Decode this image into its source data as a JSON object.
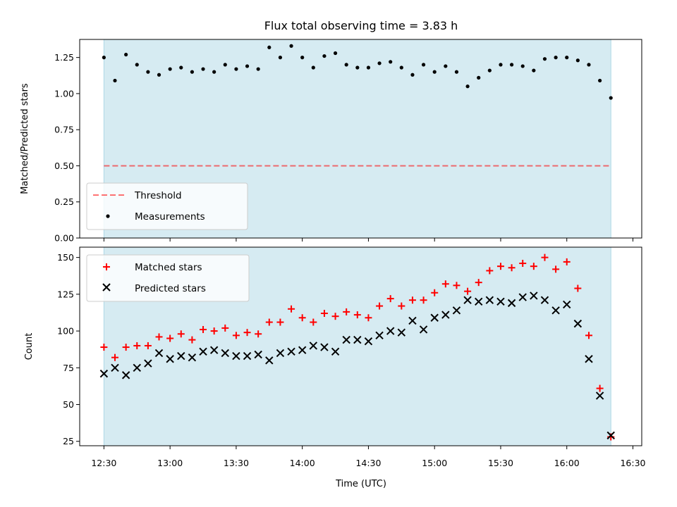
{
  "title": "Flux total observing time = 3.83 h",
  "colors": {
    "shade": "#add8e6",
    "threshold": "#ff0000",
    "matched": "#ff0000",
    "predicted": "#000000",
    "measurement": "#000000"
  },
  "chart_data": [
    {
      "type": "scatter",
      "name": "ratio",
      "ylabel": "Matched/Predicted stars",
      "xlabel": "",
      "xlim": [
        "12:19",
        "16:34"
      ],
      "ylim": [
        0,
        1.375
      ],
      "yticks": [
        0.0,
        0.25,
        0.5,
        0.75,
        1.0,
        1.25
      ],
      "ytick_labels": [
        "0.00",
        "0.25",
        "0.50",
        "0.75",
        "1.00",
        "1.25"
      ],
      "shaded_span": [
        "12:30",
        "16:20"
      ],
      "threshold": 0.5,
      "legend": {
        "position": "lower-left",
        "entries": [
          "Threshold",
          "Measurements"
        ]
      },
      "x": [
        "12:30",
        "12:35",
        "12:40",
        "12:45",
        "12:50",
        "12:55",
        "13:00",
        "13:05",
        "13:10",
        "13:15",
        "13:20",
        "13:25",
        "13:30",
        "13:35",
        "13:40",
        "13:45",
        "13:50",
        "13:55",
        "14:00",
        "14:05",
        "14:10",
        "14:15",
        "14:20",
        "14:25",
        "14:30",
        "14:35",
        "14:40",
        "14:45",
        "14:50",
        "14:55",
        "15:00",
        "15:05",
        "15:10",
        "15:15",
        "15:20",
        "15:25",
        "15:30",
        "15:35",
        "15:40",
        "15:45",
        "15:50",
        "15:55",
        "16:00",
        "16:05",
        "16:10",
        "16:15",
        "16:20"
      ],
      "values": [
        1.25,
        1.09,
        1.27,
        1.2,
        1.15,
        1.13,
        1.17,
        1.18,
        1.15,
        1.17,
        1.15,
        1.2,
        1.17,
        1.19,
        1.17,
        1.32,
        1.25,
        1.33,
        1.25,
        1.18,
        1.26,
        1.28,
        1.2,
        1.18,
        1.18,
        1.21,
        1.22,
        1.18,
        1.13,
        1.2,
        1.15,
        1.19,
        1.15,
        1.05,
        1.11,
        1.16,
        1.2,
        1.2,
        1.19,
        1.16,
        1.24,
        1.25,
        1.25,
        1.23,
        1.2,
        1.09,
        0.97
      ]
    },
    {
      "type": "scatter",
      "name": "counts",
      "ylabel": "Count",
      "xlabel": "Time (UTC)",
      "xlim": [
        "12:19",
        "16:34"
      ],
      "ylim": [
        22,
        157
      ],
      "yticks": [
        25,
        50,
        75,
        100,
        125,
        150
      ],
      "ytick_labels": [
        "25",
        "50",
        "75",
        "100",
        "125",
        "150"
      ],
      "xticks": [
        "12:30",
        "13:00",
        "13:30",
        "14:00",
        "14:30",
        "15:00",
        "15:30",
        "16:00",
        "16:30"
      ],
      "shaded_span": [
        "12:30",
        "16:20"
      ],
      "legend": {
        "position": "upper-left",
        "entries": [
          "Matched stars",
          "Predicted stars"
        ]
      },
      "x": [
        "12:30",
        "12:35",
        "12:40",
        "12:45",
        "12:50",
        "12:55",
        "13:00",
        "13:05",
        "13:10",
        "13:15",
        "13:20",
        "13:25",
        "13:30",
        "13:35",
        "13:40",
        "13:45",
        "13:50",
        "13:55",
        "14:00",
        "14:05",
        "14:10",
        "14:15",
        "14:20",
        "14:25",
        "14:30",
        "14:35",
        "14:40",
        "14:45",
        "14:50",
        "14:55",
        "15:00",
        "15:05",
        "15:10",
        "15:15",
        "15:20",
        "15:25",
        "15:30",
        "15:35",
        "15:40",
        "15:45",
        "15:50",
        "15:55",
        "16:00",
        "16:05",
        "16:10",
        "16:15",
        "16:20"
      ],
      "series": [
        {
          "name": "Matched stars",
          "marker": "plus",
          "values": [
            89,
            82,
            89,
            90,
            90,
            96,
            95,
            98,
            94,
            101,
            100,
            102,
            97,
            99,
            98,
            106,
            106,
            115,
            109,
            106,
            112,
            110,
            113,
            111,
            109,
            117,
            122,
            117,
            121,
            121,
            126,
            132,
            131,
            127,
            133,
            141,
            144,
            143,
            146,
            144,
            150,
            142,
            147,
            129,
            97,
            61,
            28
          ]
        },
        {
          "name": "Predicted stars",
          "marker": "x",
          "values": [
            71,
            75,
            70,
            75,
            78,
            85,
            81,
            83,
            82,
            86,
            87,
            85,
            83,
            83,
            84,
            80,
            85,
            86,
            87,
            90,
            89,
            86,
            94,
            94,
            93,
            97,
            100,
            99,
            107,
            101,
            109,
            111,
            114,
            121,
            120,
            121,
            120,
            119,
            123,
            124,
            121,
            114,
            118,
            105,
            81,
            56,
            29
          ]
        }
      ]
    }
  ]
}
